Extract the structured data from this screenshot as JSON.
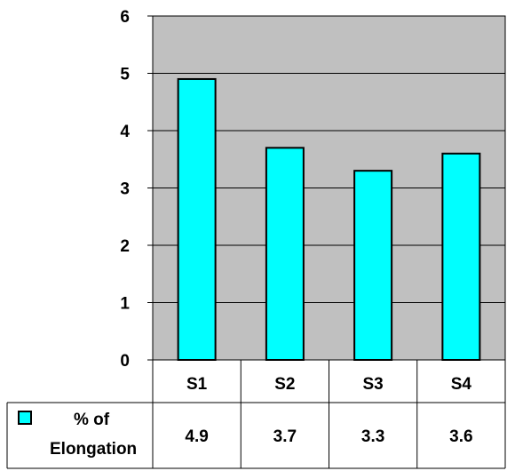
{
  "chart_data": {
    "type": "bar",
    "categories": [
      "S1",
      "S2",
      "S3",
      "S4"
    ],
    "series": [
      {
        "name": "% of Elongation",
        "values": [
          4.9,
          3.7,
          3.3,
          3.6
        ]
      }
    ],
    "data_table_values": [
      "4.9",
      "3.7",
      "3.3",
      "3.6"
    ],
    "ylim": [
      0,
      6
    ],
    "yticks": [
      "0",
      "1",
      "2",
      "3",
      "4",
      "5",
      "6"
    ],
    "grid": true,
    "legend_placement": "data-table-left",
    "colors": {
      "bar_fill": "#00FFFF",
      "plot_background": "#C0C0C0",
      "gridline": "#000000"
    }
  }
}
